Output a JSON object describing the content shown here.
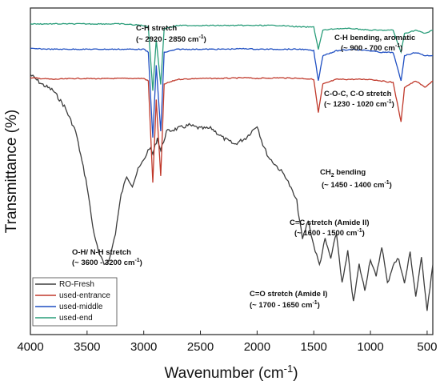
{
  "chart_data": {
    "type": "line",
    "xlabel": "Wavenumber (cm",
    "xlabel_sup": "-1",
    "xlabel_end": ")",
    "ylabel": "Transmittance (%)",
    "xlim": [
      4000,
      450
    ],
    "x_reversed": true,
    "x_ticks": [
      4000,
      3500,
      3000,
      2500,
      2000,
      1500,
      1000,
      500
    ],
    "y_ticks_shown": false,
    "legend_position": "bottom-left",
    "series": [
      {
        "name": "RO-Fresh",
        "color": "#3d3d3d",
        "points": [
          [
            4000,
            0.2
          ],
          [
            3900,
            0.23
          ],
          [
            3800,
            0.25
          ],
          [
            3700,
            0.3
          ],
          [
            3600,
            0.38
          ],
          [
            3500,
            0.55
          ],
          [
            3450,
            0.68
          ],
          [
            3400,
            0.76
          ],
          [
            3350,
            0.8
          ],
          [
            3300,
            0.78
          ],
          [
            3250,
            0.7
          ],
          [
            3200,
            0.58
          ],
          [
            3150,
            0.52
          ],
          [
            3100,
            0.55
          ],
          [
            3050,
            0.5
          ],
          [
            3000,
            0.47
          ],
          [
            2950,
            0.43
          ],
          [
            2920,
            0.45
          ],
          [
            2880,
            0.4
          ],
          [
            2850,
            0.44
          ],
          [
            2800,
            0.38
          ],
          [
            2700,
            0.37
          ],
          [
            2600,
            0.36
          ],
          [
            2500,
            0.37
          ],
          [
            2400,
            0.37
          ],
          [
            2300,
            0.4
          ],
          [
            2200,
            0.42
          ],
          [
            2100,
            0.4
          ],
          [
            2000,
            0.36
          ],
          [
            1950,
            0.42
          ],
          [
            1900,
            0.46
          ],
          [
            1850,
            0.48
          ],
          [
            1800,
            0.5
          ],
          [
            1750,
            0.52
          ],
          [
            1700,
            0.56
          ],
          [
            1650,
            0.6
          ],
          [
            1600,
            0.72
          ],
          [
            1550,
            0.66
          ],
          [
            1500,
            0.74
          ],
          [
            1450,
            0.8
          ],
          [
            1400,
            0.72
          ],
          [
            1350,
            0.78
          ],
          [
            1300,
            0.7
          ],
          [
            1250,
            0.86
          ],
          [
            1200,
            0.76
          ],
          [
            1150,
            0.92
          ],
          [
            1100,
            0.8
          ],
          [
            1050,
            0.88
          ],
          [
            1000,
            0.78
          ],
          [
            950,
            0.84
          ],
          [
            900,
            0.74
          ],
          [
            850,
            0.86
          ],
          [
            800,
            0.8
          ],
          [
            750,
            0.78
          ],
          [
            700,
            0.86
          ],
          [
            650,
            0.76
          ],
          [
            600,
            0.9
          ],
          [
            550,
            0.78
          ],
          [
            500,
            0.94
          ],
          [
            450,
            0.8
          ]
        ]
      },
      {
        "name": "used-entrance",
        "color": "#c0392b",
        "points": [
          [
            4000,
            0.21
          ],
          [
            3800,
            0.215
          ],
          [
            3600,
            0.212
          ],
          [
            3400,
            0.213
          ],
          [
            3200,
            0.212
          ],
          [
            3000,
            0.212
          ],
          [
            2960,
            0.22
          ],
          [
            2920,
            0.54
          ],
          [
            2890,
            0.28
          ],
          [
            2850,
            0.52
          ],
          [
            2820,
            0.23
          ],
          [
            2700,
            0.215
          ],
          [
            2500,
            0.212
          ],
          [
            2300,
            0.212
          ],
          [
            2100,
            0.21
          ],
          [
            2000,
            0.212
          ],
          [
            1800,
            0.21
          ],
          [
            1600,
            0.212
          ],
          [
            1500,
            0.215
          ],
          [
            1460,
            0.32
          ],
          [
            1420,
            0.23
          ],
          [
            1300,
            0.215
          ],
          [
            1150,
            0.215
          ],
          [
            1000,
            0.215
          ],
          [
            900,
            0.22
          ],
          [
            800,
            0.225
          ],
          [
            730,
            0.35
          ],
          [
            700,
            0.24
          ],
          [
            600,
            0.22
          ],
          [
            520,
            0.24
          ],
          [
            450,
            0.22
          ]
        ]
      },
      {
        "name": "used-middle",
        "color": "#1f4fc2",
        "points": [
          [
            4000,
            0.118
          ],
          [
            3800,
            0.12
          ],
          [
            3600,
            0.12
          ],
          [
            3400,
            0.12
          ],
          [
            3200,
            0.12
          ],
          [
            3000,
            0.12
          ],
          [
            2960,
            0.13
          ],
          [
            2920,
            0.4
          ],
          [
            2890,
            0.17
          ],
          [
            2850,
            0.38
          ],
          [
            2820,
            0.13
          ],
          [
            2700,
            0.12
          ],
          [
            2500,
            0.12
          ],
          [
            2300,
            0.12
          ],
          [
            2100,
            0.118
          ],
          [
            2000,
            0.12
          ],
          [
            1800,
            0.12
          ],
          [
            1600,
            0.12
          ],
          [
            1500,
            0.125
          ],
          [
            1460,
            0.22
          ],
          [
            1420,
            0.14
          ],
          [
            1300,
            0.125
          ],
          [
            1150,
            0.12
          ],
          [
            1000,
            0.125
          ],
          [
            900,
            0.13
          ],
          [
            800,
            0.13
          ],
          [
            730,
            0.22
          ],
          [
            700,
            0.14
          ],
          [
            600,
            0.13
          ],
          [
            520,
            0.14
          ],
          [
            450,
            0.14
          ]
        ]
      },
      {
        "name": "used-end",
        "color": "#2a9d7a",
        "points": [
          [
            4000,
            0.04
          ],
          [
            3800,
            0.04
          ],
          [
            3600,
            0.04
          ],
          [
            3400,
            0.04
          ],
          [
            3200,
            0.04
          ],
          [
            3000,
            0.045
          ],
          [
            2960,
            0.05
          ],
          [
            2920,
            0.25
          ],
          [
            2890,
            0.09
          ],
          [
            2850,
            0.23
          ],
          [
            2820,
            0.055
          ],
          [
            2700,
            0.045
          ],
          [
            2500,
            0.045
          ],
          [
            2300,
            0.045
          ],
          [
            2100,
            0.045
          ],
          [
            2000,
            0.045
          ],
          [
            1800,
            0.045
          ],
          [
            1600,
            0.05
          ],
          [
            1500,
            0.05
          ],
          [
            1460,
            0.12
          ],
          [
            1420,
            0.06
          ],
          [
            1300,
            0.055
          ],
          [
            1150,
            0.055
          ],
          [
            1000,
            0.06
          ],
          [
            900,
            0.06
          ],
          [
            800,
            0.06
          ],
          [
            730,
            0.13
          ],
          [
            700,
            0.07
          ],
          [
            600,
            0.06
          ],
          [
            520,
            0.07
          ],
          [
            450,
            0.06
          ]
        ]
      }
    ],
    "annotations": [
      {
        "id": "ch-stretch",
        "line1": "C-H stretch",
        "line2": "(~ 2920 - 2850 cm",
        "sup": "-1",
        "end": ")"
      },
      {
        "id": "ch-bending-aromatic",
        "line1": "C-H bending, aromatic",
        "line2": "(~ 900 - 700 cm",
        "sup": "-1",
        "end": ")"
      },
      {
        "id": "coc-stretch",
        "line1": "C-O-C, C-O stretch",
        "line2": "(~ 1230 - 1020 cm",
        "sup": "-1",
        "end": ")"
      },
      {
        "id": "ch2-bending",
        "line1": "CH",
        "line1_sub": "2",
        "line1_end": " bending",
        "line2": "(~ 1450 - 1400 cm",
        "sup": "-1",
        "end": ")"
      },
      {
        "id": "cc-stretch",
        "line1": "C=C stretch (Amide II)",
        "line2": "(~ 1600 - 1500 cm",
        "sup": "-1",
        "end": ")"
      },
      {
        "id": "oh-nh-stretch",
        "line1": "O-H/ N-H stretch",
        "line2": "(~ 3600 - 3200 cm",
        "sup": "-1",
        "end": ")"
      },
      {
        "id": "co-stretch",
        "line1": "C=O stretch (Amide I)",
        "line2": "(~ 1700 - 1650 cm",
        "sup": "-1",
        "end": ")"
      }
    ]
  }
}
